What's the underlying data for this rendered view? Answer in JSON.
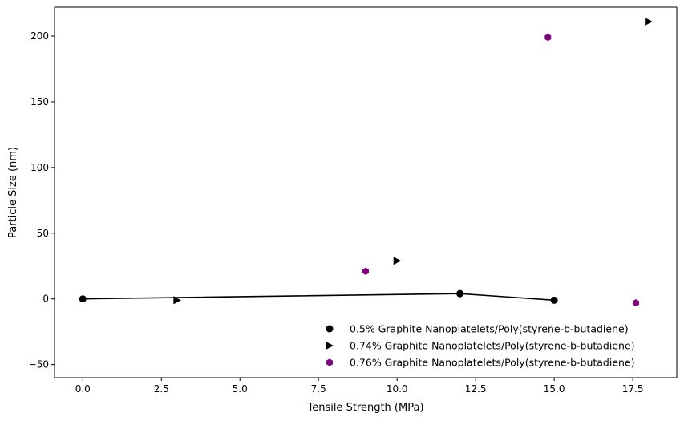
{
  "chart_data": {
    "type": "scatter",
    "title": "",
    "xlabel": "Tensile Strength (MPa)",
    "ylabel": "Particle Size (nm)",
    "xlim": [
      -0.9,
      18.9
    ],
    "ylim": [
      -60,
      222
    ],
    "xticks": [
      0.0,
      2.5,
      5.0,
      7.5,
      10.0,
      12.5,
      15.0,
      17.5
    ],
    "xtick_labels": [
      "0.0",
      "2.5",
      "5.0",
      "7.5",
      "10.0",
      "12.5",
      "15.0",
      "17.5"
    ],
    "yticks": [
      -50,
      0,
      50,
      100,
      150,
      200
    ],
    "ytick_labels": [
      "−50",
      "0",
      "50",
      "100",
      "150",
      "200"
    ],
    "grid": false,
    "legend_position": "lower-right",
    "series": [
      {
        "name": "0.5% Graphite Nanoplatelets/Poly(styrene-b-butadiene)",
        "marker": "circle",
        "color": "#000000",
        "points": [
          [
            0,
            0
          ],
          [
            12,
            4
          ],
          [
            15,
            -1
          ]
        ]
      },
      {
        "name": "0.74% Graphite Nanoplatelets/Poly(styrene-b-butadiene)",
        "marker": "triangle-right",
        "color": "#000000",
        "points": [
          [
            3,
            -1
          ],
          [
            10,
            29
          ],
          [
            18,
            211
          ]
        ]
      },
      {
        "name": "0.76% Graphite Nanoplatelets/Poly(styrene-b-butadiene)",
        "marker": "hexagon",
        "color": "#800080",
        "points": [
          [
            9,
            21
          ],
          [
            14.8,
            199
          ],
          [
            17.6,
            -3
          ]
        ]
      }
    ],
    "trend_line": {
      "color": "#000000",
      "points": [
        [
          0,
          0
        ],
        [
          12,
          4
        ],
        [
          15,
          -1
        ]
      ]
    }
  }
}
